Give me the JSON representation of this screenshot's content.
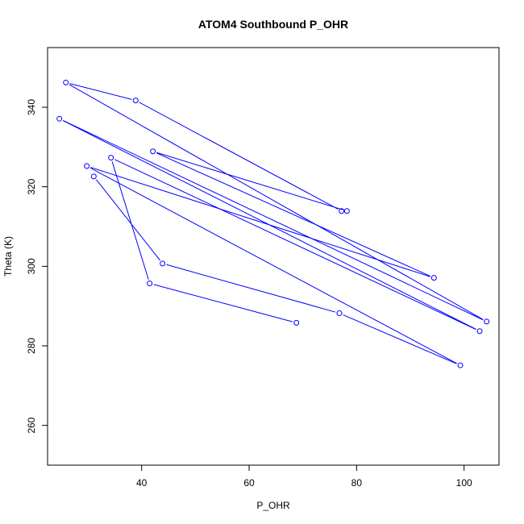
{
  "chart_data": {
    "type": "line",
    "title": "ATOM4 Southbound P_OHR",
    "xlabel": "P_OHR",
    "ylabel": "Theta (K)",
    "xlim": [
      22.5,
      106.5
    ],
    "ylim": [
      250,
      355
    ],
    "xticks": [
      40,
      60,
      80,
      100
    ],
    "yticks": [
      260,
      280,
      300,
      320,
      340
    ],
    "grid": false,
    "legend": "none",
    "series": [
      {
        "color": "#0000ff",
        "marker": "open-circle",
        "points": [
          {
            "x": 68.8,
            "y": 285.8
          },
          {
            "x": 41.5,
            "y": 295.7
          },
          {
            "x": 34.3,
            "y": 327.3
          },
          {
            "x": 102.9,
            "y": 283.7
          },
          {
            "x": 24.7,
            "y": 337.1
          },
          {
            "x": 104.2,
            "y": 286.1
          },
          {
            "x": 25.9,
            "y": 346.2
          },
          {
            "x": 38.9,
            "y": 341.7
          },
          {
            "x": 77.2,
            "y": 313.9
          },
          {
            "x": 78.2,
            "y": 313.9
          },
          {
            "x": 42.1,
            "y": 328.9
          },
          {
            "x": 94.4,
            "y": 297.1
          },
          {
            "x": 29.8,
            "y": 325.2
          },
          {
            "x": 99.3,
            "y": 275.1
          },
          {
            "x": 76.8,
            "y": 288.2
          },
          {
            "x": 43.9,
            "y": 300.7
          },
          {
            "x": 31.1,
            "y": 322.6
          }
        ]
      }
    ]
  }
}
